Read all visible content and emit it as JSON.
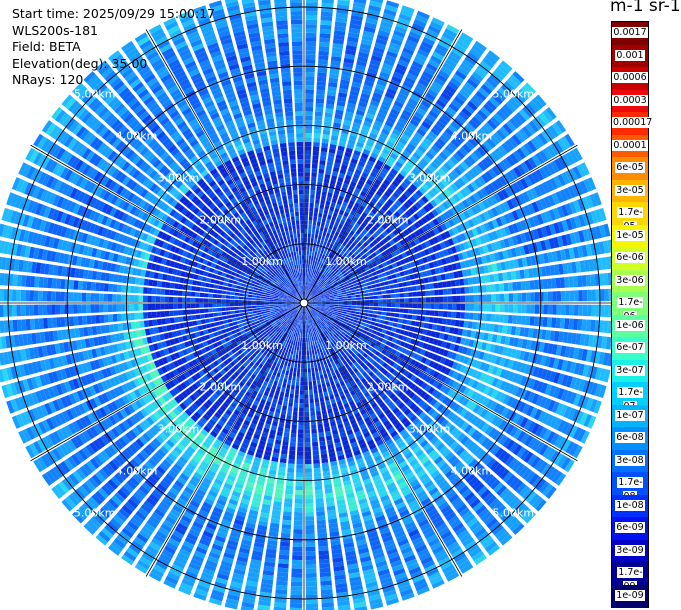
{
  "info": {
    "start_time": "Start time: 2025/09/29 15:00:17",
    "instrument": "WLS200s-181",
    "field": "Field: BETA",
    "elevation": "Elevation(deg): 35.00",
    "nrays": "NRays: 120"
  },
  "colorbar": {
    "unit_title": "m-1 sr-1",
    "labels": [
      "0.0017",
      "0.001",
      "0.0006",
      "0.0003",
      "0.00017",
      "0.0001",
      "6e-05",
      "3e-05",
      "1.7e-05",
      "1e-05",
      "6e-06",
      "3e-06",
      "1.7e-06",
      "1e-06",
      "6e-07",
      "3e-07",
      "1.7e-07",
      "1e-07",
      "6e-08",
      "3e-08",
      "1.7e-08",
      "1e-08",
      "6e-09",
      "3e-09",
      "1.7e-09",
      "1e-09"
    ],
    "colors": [
      "#800000",
      "#a20000",
      "#c80000",
      "#ee0a0a",
      "#ff2a00",
      "#ff5a00",
      "#ff8c00",
      "#ffb400",
      "#ffd700",
      "#f5f500",
      "#d2ff24",
      "#a8ff4e",
      "#80ff78",
      "#5affa0",
      "#38ffc8",
      "#1aefe8",
      "#00d0ff",
      "#00b4ff",
      "#0090ff",
      "#0070ff",
      "#0050ff",
      "#0030ff",
      "#0012f0",
      "#0000c8",
      "#000096",
      "#00006e"
    ]
  },
  "chart_data": {
    "type": "ppi",
    "field": "BETA",
    "elevation_deg": 35.0,
    "nrays": 120,
    "range_rings_km": [
      1,
      2,
      3,
      4,
      5
    ],
    "max_range_km": 5.3,
    "ring_labels": [
      "1.00km",
      "2.00km",
      "3.00km",
      "4.00km",
      "5.00km"
    ],
    "colormap": "jet",
    "color_scale": "log",
    "color_range": [
      1e-09,
      0.0017
    ]
  }
}
